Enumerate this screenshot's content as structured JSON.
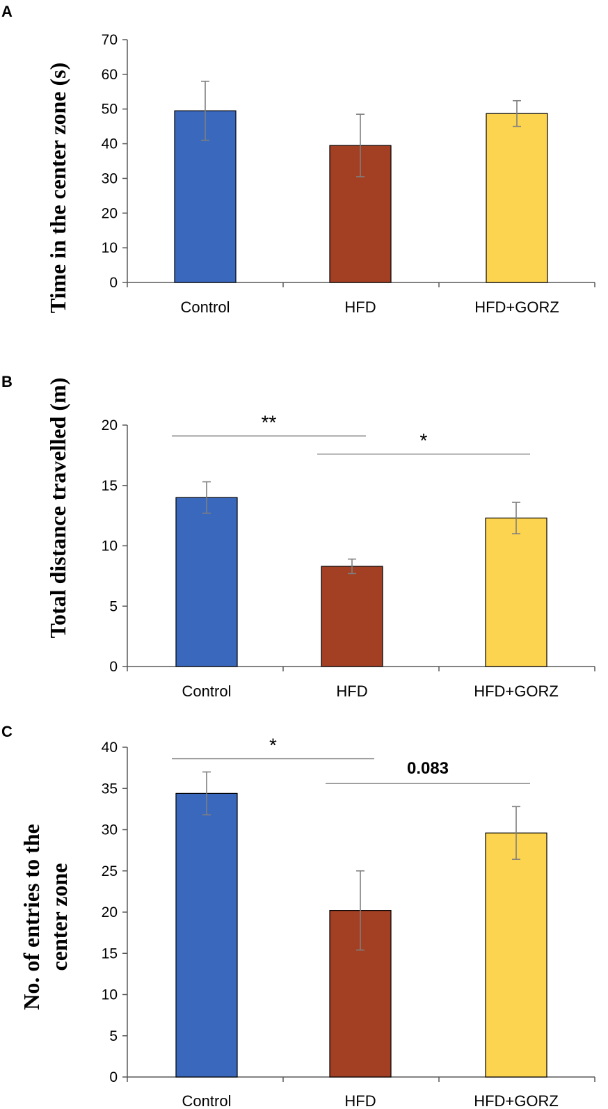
{
  "chart_data": [
    {
      "panel": "A",
      "type": "bar",
      "categories": [
        "Control",
        "HFD",
        "HFD+GORZ"
      ],
      "values": [
        49.5,
        39.5,
        48.7
      ],
      "errors": [
        8.5,
        9.0,
        3.7
      ],
      "colors": [
        "#3a68bd",
        "#a33f23",
        "#fdd44f"
      ],
      "ylabel": [
        "Time in the center zone (s)"
      ],
      "ylim": [
        0,
        70
      ],
      "yticks": [
        0,
        10,
        20,
        30,
        40,
        50,
        60,
        70
      ],
      "significance": []
    },
    {
      "panel": "B",
      "type": "bar",
      "categories": [
        "Control",
        "HFD",
        "HFD+GORZ"
      ],
      "values": [
        14.0,
        8.3,
        12.3
      ],
      "errors": [
        1.3,
        0.6,
        1.3
      ],
      "colors": [
        "#3a68bd",
        "#a33f23",
        "#fdd44f"
      ],
      "ylabel": [
        "Total distance travelled (m)"
      ],
      "ylim": [
        0,
        20
      ],
      "yticks": [
        0,
        5,
        10,
        15,
        20
      ],
      "significance": [
        {
          "from": 0,
          "to": 1,
          "label": "**",
          "level": 19.1,
          "bold": false
        },
        {
          "from": 1,
          "to": 2,
          "label": "*",
          "level": 17.6,
          "bold": false
        }
      ]
    },
    {
      "panel": "C",
      "type": "bar",
      "categories": [
        "Control",
        "HFD",
        "HFD+GORZ"
      ],
      "values": [
        34.4,
        20.2,
        29.6
      ],
      "errors": [
        2.6,
        4.8,
        3.2
      ],
      "colors": [
        "#3a68bd",
        "#a33f23",
        "#fdd44f"
      ],
      "ylabel": [
        "No. of entries to the",
        "center zone"
      ],
      "ylim": [
        0,
        40
      ],
      "yticks": [
        0,
        5,
        10,
        15,
        20,
        25,
        30,
        35,
        40
      ],
      "significance": [
        {
          "from": 0,
          "to": 1,
          "label": "*",
          "level": 38.6,
          "bold": false
        },
        {
          "from": 1,
          "to": 2,
          "label": "0.083",
          "level": 35.6,
          "bold": true
        }
      ]
    }
  ]
}
